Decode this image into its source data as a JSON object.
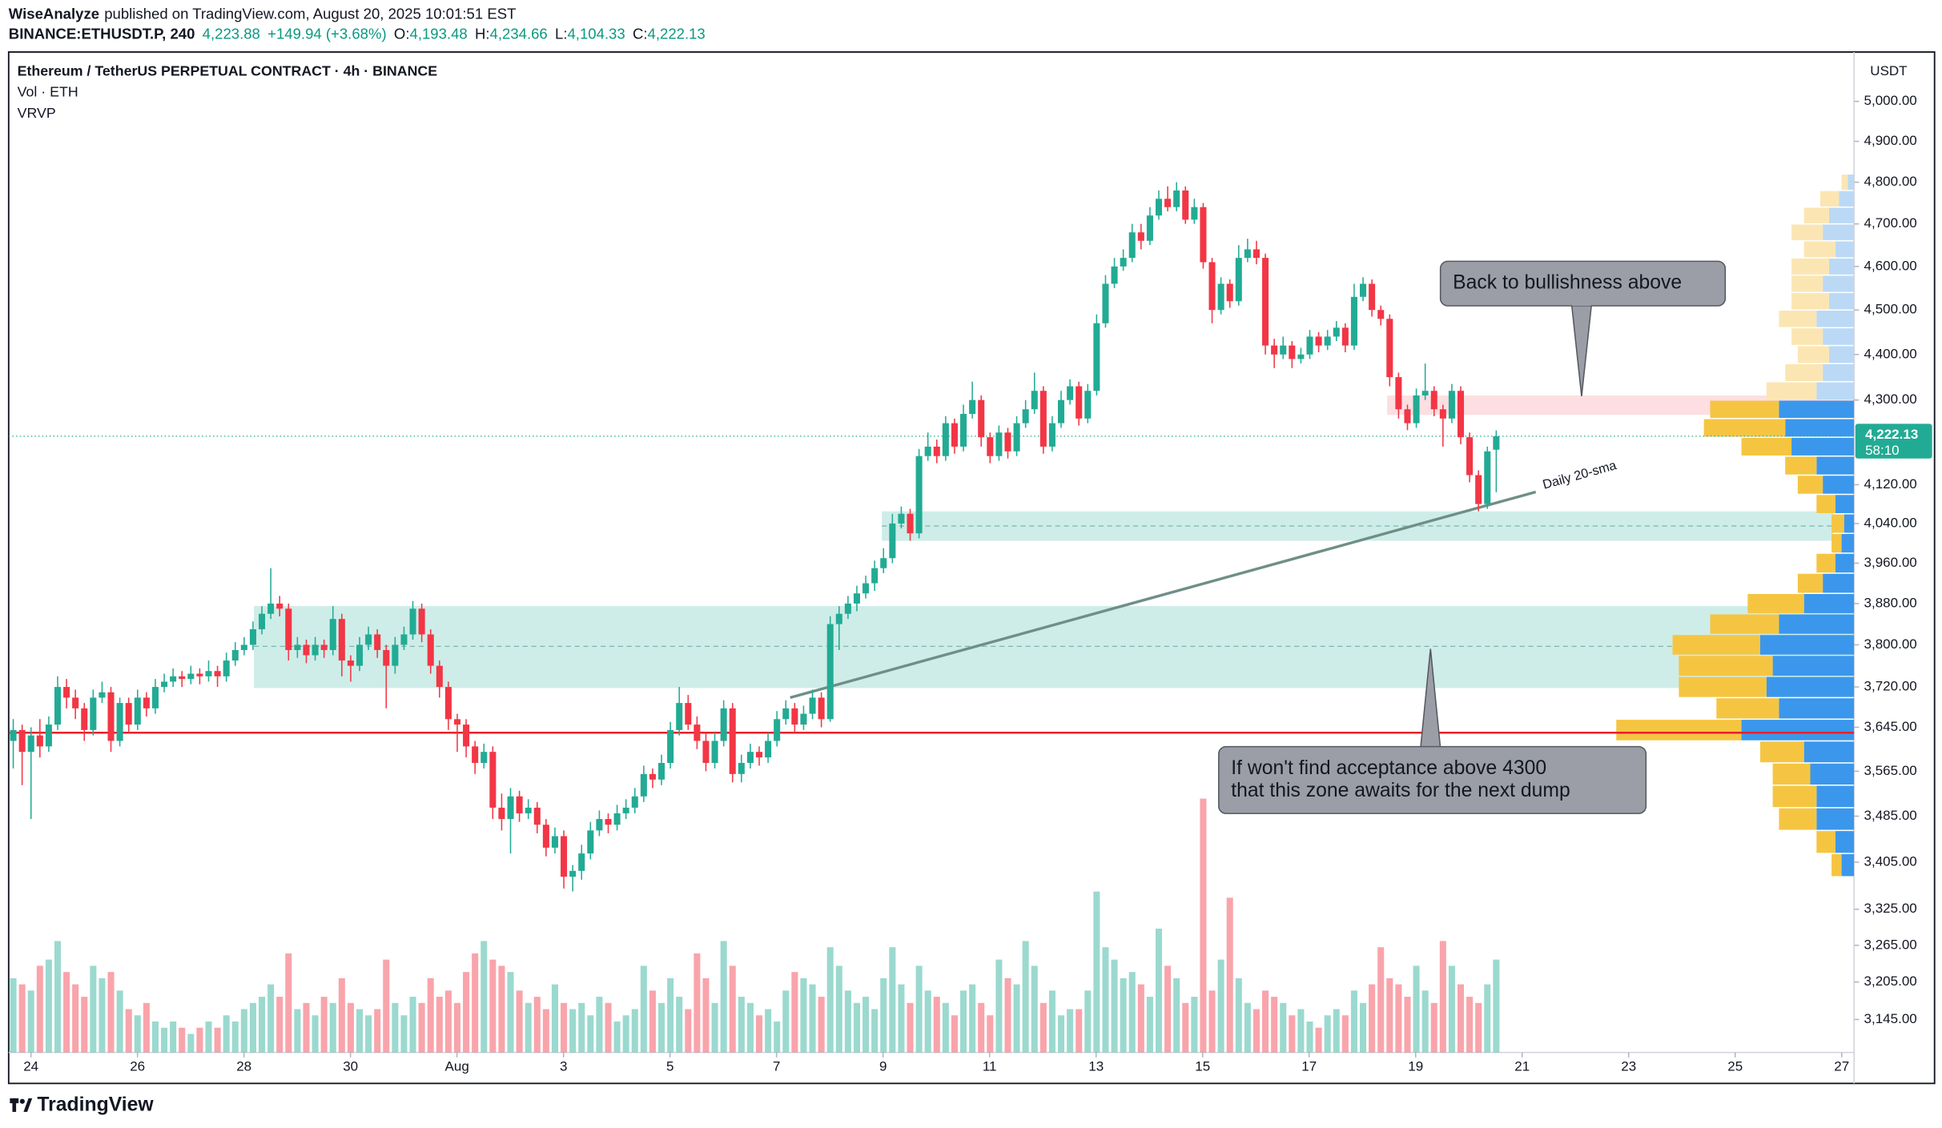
{
  "header": {
    "author": "WiseAnalyze",
    "published": "published on TradingView.com, August 20, 2025 10:01:51 EST",
    "symbol": "BINANCE:ETHUSDT.P, 240",
    "price": "4,223.88",
    "change": "+149.94 (+3.68%)",
    "ohlc": [
      {
        "label": "O:",
        "value": "4,193.48"
      },
      {
        "label": "H:",
        "value": "4,234.66"
      },
      {
        "label": "L:",
        "value": "4,104.33"
      },
      {
        "label": "C:",
        "value": "4,222.13"
      }
    ],
    "brand": "TradingView"
  },
  "chart_data": {
    "type": "candlestick",
    "title": "Ethereum / TetherUS PERPETUAL CONTRACT · 4h · BINANCE",
    "axis_unit": "USDT",
    "up_color": "#22ab94",
    "down_color": "#f23645",
    "log_scale": true,
    "grid": false,
    "ylim": [
      3093,
      5123
    ],
    "yticks": [
      {
        "value": 5000,
        "label": "5,000.00"
      },
      {
        "value": 4900,
        "label": "4,900.00"
      },
      {
        "value": 4800,
        "label": "4,800.00"
      },
      {
        "value": 4700,
        "label": "4,700.00"
      },
      {
        "value": 4600,
        "label": "4,600.00"
      },
      {
        "value": 4500,
        "label": "4,500.00"
      },
      {
        "value": 4400,
        "label": "4,400.00"
      },
      {
        "value": 4300,
        "label": "4,300.00"
      },
      {
        "value": 4120,
        "label": "4,120.00"
      },
      {
        "value": 4040,
        "label": "4,040.00"
      },
      {
        "value": 3960,
        "label": "3,960.00"
      },
      {
        "value": 3880,
        "label": "3,880.00"
      },
      {
        "value": 3800,
        "label": "3,800.00"
      },
      {
        "value": 3720,
        "label": "3,720.00"
      },
      {
        "value": 3645,
        "label": "3,645.00"
      },
      {
        "value": 3565,
        "label": "3,565.00"
      },
      {
        "value": 3485,
        "label": "3,485.00"
      },
      {
        "value": 3405,
        "label": "3,405.00"
      },
      {
        "value": 3325,
        "label": "3,325.00"
      },
      {
        "value": 3265,
        "label": "3,265.00"
      },
      {
        "value": 3205,
        "label": "3,205.00"
      },
      {
        "value": 3145,
        "label": "3,145.00"
      }
    ],
    "xticks": [
      "24",
      "26",
      "28",
      "30",
      "Aug",
      "3",
      "5",
      "7",
      "9",
      "11",
      "13",
      "15",
      "17",
      "19",
      "21",
      "23",
      "25",
      "27"
    ],
    "ohlc": [
      [
        3620,
        3660,
        3570,
        3640
      ],
      [
        3640,
        3650,
        3540,
        3600
      ],
      [
        3600,
        3645,
        3480,
        3630
      ],
      [
        3630,
        3660,
        3590,
        3610
      ],
      [
        3610,
        3665,
        3600,
        3650
      ],
      [
        3650,
        3740,
        3640,
        3720
      ],
      [
        3720,
        3735,
        3680,
        3700
      ],
      [
        3700,
        3715,
        3660,
        3680
      ],
      [
        3680,
        3690,
        3620,
        3640
      ],
      [
        3640,
        3715,
        3630,
        3700
      ],
      [
        3700,
        3730,
        3690,
        3710
      ],
      [
        3710,
        3720,
        3600,
        3620
      ],
      [
        3620,
        3700,
        3610,
        3690
      ],
      [
        3690,
        3700,
        3635,
        3650
      ],
      [
        3650,
        3715,
        3640,
        3700
      ],
      [
        3700,
        3710,
        3665,
        3680
      ],
      [
        3680,
        3735,
        3670,
        3720
      ],
      [
        3720,
        3745,
        3710,
        3730
      ],
      [
        3730,
        3755,
        3720,
        3740
      ],
      [
        3740,
        3750,
        3720,
        3735
      ],
      [
        3735,
        3760,
        3725,
        3745
      ],
      [
        3745,
        3755,
        3725,
        3740
      ],
      [
        3740,
        3770,
        3730,
        3750
      ],
      [
        3750,
        3760,
        3720,
        3740
      ],
      [
        3740,
        3785,
        3730,
        3770
      ],
      [
        3770,
        3805,
        3760,
        3790
      ],
      [
        3790,
        3815,
        3780,
        3800
      ],
      [
        3800,
        3845,
        3790,
        3830
      ],
      [
        3830,
        3875,
        3820,
        3860
      ],
      [
        3860,
        3950,
        3850,
        3880
      ],
      [
        3880,
        3895,
        3855,
        3870
      ],
      [
        3870,
        3880,
        3770,
        3790
      ],
      [
        3790,
        3815,
        3775,
        3800
      ],
      [
        3800,
        3810,
        3765,
        3780
      ],
      [
        3780,
        3815,
        3770,
        3800
      ],
      [
        3800,
        3810,
        3775,
        3790
      ],
      [
        3790,
        3875,
        3780,
        3850
      ],
      [
        3850,
        3860,
        3740,
        3770
      ],
      [
        3770,
        3780,
        3730,
        3760
      ],
      [
        3760,
        3815,
        3750,
        3800
      ],
      [
        3800,
        3835,
        3790,
        3820
      ],
      [
        3820,
        3830,
        3775,
        3790
      ],
      [
        3790,
        3800,
        3680,
        3760
      ],
      [
        3760,
        3815,
        3745,
        3800
      ],
      [
        3800,
        3835,
        3790,
        3820
      ],
      [
        3820,
        3885,
        3810,
        3870
      ],
      [
        3870,
        3880,
        3805,
        3820
      ],
      [
        3820,
        3830,
        3745,
        3760
      ],
      [
        3760,
        3770,
        3700,
        3720
      ],
      [
        3720,
        3730,
        3640,
        3660
      ],
      [
        3660,
        3670,
        3600,
        3650
      ],
      [
        3650,
        3660,
        3590,
        3610
      ],
      [
        3610,
        3620,
        3560,
        3580
      ],
      [
        3580,
        3615,
        3570,
        3600
      ],
      [
        3600,
        3610,
        3480,
        3500
      ],
      [
        3500,
        3525,
        3460,
        3480
      ],
      [
        3480,
        3535,
        3420,
        3520
      ],
      [
        3520,
        3530,
        3475,
        3490
      ],
      [
        3490,
        3515,
        3480,
        3500
      ],
      [
        3500,
        3510,
        3455,
        3470
      ],
      [
        3470,
        3480,
        3415,
        3430
      ],
      [
        3430,
        3465,
        3420,
        3450
      ],
      [
        3450,
        3460,
        3360,
        3380
      ],
      [
        3380,
        3400,
        3355,
        3390
      ],
      [
        3390,
        3435,
        3375,
        3420
      ],
      [
        3420,
        3475,
        3410,
        3460
      ],
      [
        3460,
        3495,
        3450,
        3480
      ],
      [
        3480,
        3490,
        3455,
        3470
      ],
      [
        3470,
        3505,
        3460,
        3490
      ],
      [
        3490,
        3515,
        3480,
        3500
      ],
      [
        3500,
        3535,
        3490,
        3520
      ],
      [
        3520,
        3575,
        3510,
        3560
      ],
      [
        3560,
        3570,
        3535,
        3550
      ],
      [
        3550,
        3595,
        3540,
        3580
      ],
      [
        3580,
        3655,
        3570,
        3640
      ],
      [
        3640,
        3720,
        3630,
        3690
      ],
      [
        3690,
        3705,
        3640,
        3650
      ],
      [
        3650,
        3665,
        3605,
        3620
      ],
      [
        3620,
        3635,
        3565,
        3580
      ],
      [
        3580,
        3635,
        3570,
        3620
      ],
      [
        3620,
        3695,
        3610,
        3680
      ],
      [
        3680,
        3690,
        3545,
        3560
      ],
      [
        3560,
        3595,
        3545,
        3580
      ],
      [
        3580,
        3615,
        3570,
        3600
      ],
      [
        3600,
        3610,
        3575,
        3590
      ],
      [
        3590,
        3635,
        3580,
        3620
      ],
      [
        3620,
        3675,
        3610,
        3660
      ],
      [
        3660,
        3695,
        3650,
        3680
      ],
      [
        3680,
        3690,
        3635,
        3650
      ],
      [
        3650,
        3685,
        3640,
        3670
      ],
      [
        3670,
        3715,
        3660,
        3700
      ],
      [
        3700,
        3710,
        3645,
        3660
      ],
      [
        3660,
        3855,
        3655,
        3840
      ],
      [
        3840,
        3875,
        3790,
        3860
      ],
      [
        3860,
        3895,
        3850,
        3880
      ],
      [
        3880,
        3915,
        3865,
        3900
      ],
      [
        3900,
        3935,
        3890,
        3920
      ],
      [
        3920,
        3965,
        3905,
        3950
      ],
      [
        3950,
        3990,
        3940,
        3970
      ],
      [
        3970,
        4060,
        3960,
        4040
      ],
      [
        4040,
        4075,
        4030,
        4060
      ],
      [
        4060,
        4070,
        4005,
        4020
      ],
      [
        4020,
        4195,
        4010,
        4180
      ],
      [
        4180,
        4230,
        4170,
        4200
      ],
      [
        4200,
        4215,
        4165,
        4180
      ],
      [
        4180,
        4265,
        4170,
        4250
      ],
      [
        4250,
        4260,
        4185,
        4200
      ],
      [
        4200,
        4290,
        4190,
        4270
      ],
      [
        4270,
        4340,
        4260,
        4300
      ],
      [
        4300,
        4310,
        4200,
        4220
      ],
      [
        4220,
        4230,
        4165,
        4180
      ],
      [
        4180,
        4245,
        4170,
        4230
      ],
      [
        4230,
        4240,
        4175,
        4190
      ],
      [
        4190,
        4265,
        4180,
        4250
      ],
      [
        4250,
        4300,
        4240,
        4280
      ],
      [
        4280,
        4360,
        4270,
        4320
      ],
      [
        4320,
        4330,
        4185,
        4200
      ],
      [
        4200,
        4265,
        4190,
        4250
      ],
      [
        4250,
        4320,
        4240,
        4300
      ],
      [
        4300,
        4345,
        4290,
        4330
      ],
      [
        4330,
        4340,
        4245,
        4260
      ],
      [
        4260,
        4335,
        4250,
        4320
      ],
      [
        4320,
        4490,
        4310,
        4470
      ],
      [
        4470,
        4580,
        4460,
        4560
      ],
      [
        4560,
        4620,
        4550,
        4600
      ],
      [
        4600,
        4640,
        4590,
        4620
      ],
      [
        4620,
        4700,
        4610,
        4680
      ],
      [
        4680,
        4700,
        4640,
        4660
      ],
      [
        4660,
        4740,
        4650,
        4720
      ],
      [
        4720,
        4780,
        4710,
        4760
      ],
      [
        4760,
        4790,
        4730,
        4740
      ],
      [
        4740,
        4800,
        4730,
        4780
      ],
      [
        4780,
        4790,
        4700,
        4710
      ],
      [
        4710,
        4760,
        4700,
        4740
      ],
      [
        4740,
        4750,
        4595,
        4610
      ],
      [
        4610,
        4620,
        4470,
        4500
      ],
      [
        4500,
        4575,
        4490,
        4560
      ],
      [
        4560,
        4570,
        4505,
        4520
      ],
      [
        4520,
        4650,
        4510,
        4620
      ],
      [
        4620,
        4665,
        4610,
        4640
      ],
      [
        4640,
        4660,
        4605,
        4620
      ],
      [
        4620,
        4630,
        4400,
        4420
      ],
      [
        4420,
        4435,
        4370,
        4400
      ],
      [
        4400,
        4440,
        4390,
        4420
      ],
      [
        4420,
        4430,
        4370,
        4390
      ],
      [
        4390,
        4415,
        4380,
        4400
      ],
      [
        4400,
        4455,
        4390,
        4440
      ],
      [
        4440,
        4450,
        4405,
        4420
      ],
      [
        4420,
        4455,
        4410,
        4440
      ],
      [
        4440,
        4475,
        4430,
        4460
      ],
      [
        4460,
        4470,
        4405,
        4420
      ],
      [
        4420,
        4560,
        4410,
        4530
      ],
      [
        4530,
        4575,
        4520,
        4560
      ],
      [
        4560,
        4570,
        4485,
        4500
      ],
      [
        4500,
        4510,
        4465,
        4480
      ],
      [
        4480,
        4490,
        4330,
        4350
      ],
      [
        4350,
        4360,
        4260,
        4280
      ],
      [
        4280,
        4290,
        4235,
        4250
      ],
      [
        4250,
        4325,
        4240,
        4310
      ],
      [
        4310,
        4380,
        4300,
        4320
      ],
      [
        4320,
        4330,
        4265,
        4280
      ],
      [
        4280,
        4290,
        4200,
        4260
      ],
      [
        4260,
        4335,
        4250,
        4320
      ],
      [
        4320,
        4330,
        4205,
        4220
      ],
      [
        4220,
        4230,
        4125,
        4140
      ],
      [
        4140,
        4150,
        4065,
        4080
      ],
      [
        4080,
        4200,
        4070,
        4190
      ],
      [
        4193.48,
        4234.66,
        4104.33,
        4222.13
      ]
    ],
    "volume": {
      "label": "Vol · ETH",
      "values": [
        60,
        55,
        50,
        70,
        75,
        90,
        65,
        55,
        45,
        70,
        60,
        65,
        50,
        35,
        30,
        40,
        25,
        20,
        25,
        20,
        15,
        20,
        25,
        20,
        30,
        25,
        35,
        40,
        45,
        55,
        45,
        80,
        35,
        40,
        30,
        45,
        40,
        60,
        40,
        35,
        30,
        35,
        75,
        40,
        30,
        45,
        40,
        60,
        45,
        50,
        40,
        65,
        80,
        90,
        75,
        70,
        65,
        50,
        40,
        45,
        35,
        55,
        40,
        35,
        40,
        30,
        45,
        40,
        25,
        30,
        35,
        70,
        50,
        40,
        60,
        45,
        35,
        80,
        60,
        40,
        90,
        70,
        45,
        40,
        30,
        35,
        25,
        50,
        65,
        60,
        55,
        45,
        85,
        70,
        50,
        40,
        45,
        35,
        60,
        85,
        55,
        40,
        70,
        50,
        45,
        40,
        30,
        50,
        55,
        40,
        30,
        75,
        60,
        55,
        90,
        70,
        40,
        50,
        30,
        35,
        35,
        50,
        130,
        85,
        75,
        60,
        65,
        55,
        45,
        100,
        70,
        60,
        40,
        45,
        205,
        50,
        75,
        125,
        60,
        40,
        35,
        50,
        45,
        40,
        30,
        35,
        25,
        20,
        30,
        35,
        30,
        50,
        40,
        55,
        85,
        60,
        55,
        45,
        70,
        50,
        40,
        90,
        70,
        55,
        45,
        40,
        55,
        75
      ]
    },
    "last_price": {
      "value_label": "4,222.13",
      "countdown": "58:10"
    },
    "vrvp": {
      "label": "VRVP",
      "levels": [
        3380,
        3420,
        3460,
        3500,
        3540,
        3580,
        3620,
        3660,
        3700,
        3740,
        3780,
        3820,
        3860,
        3900,
        3940,
        3980,
        4020,
        4060,
        4100,
        4140,
        4180,
        4220,
        4260,
        4300,
        4340,
        4380,
        4420,
        4460,
        4500,
        4540,
        4580,
        4620,
        4660,
        4700,
        4740,
        4780,
        4820
      ],
      "up": [
        10,
        15,
        30,
        30,
        35,
        40,
        90,
        60,
        70,
        65,
        75,
        60,
        40,
        25,
        15,
        10,
        8,
        15,
        25,
        30,
        50,
        55,
        60,
        30,
        25,
        20,
        25,
        30,
        20,
        25,
        20,
        15,
        25,
        20,
        12,
        5
      ],
      "down": [
        8,
        15,
        30,
        35,
        30,
        35,
        100,
        50,
        70,
        75,
        70,
        55,
        45,
        20,
        15,
        8,
        10,
        15,
        20,
        25,
        40,
        65,
        55,
        40,
        30,
        25,
        25,
        30,
        30,
        25,
        30,
        25,
        25,
        20,
        15,
        5
      ],
      "value_area": [
        3380,
        4300
      ],
      "up_color": "#3b97ec",
      "down_color": "#f5c542",
      "up_color_outside": "#bbd9f5",
      "down_color_outside": "#fbe6b3"
    },
    "poc_line": {
      "value": 3635,
      "color": "#e8202a"
    },
    "zones": [
      {
        "low": 3718,
        "high": 3875,
        "mid": 3797,
        "color": "rgba(34,171,148,0.22)"
      },
      {
        "low": 4005,
        "high": 4065,
        "mid": 4035,
        "color": "rgba(34,171,148,0.22)"
      },
      {
        "low": 4268,
        "high": 4310,
        "color": "rgba(242,54,69,0.16)"
      }
    ],
    "trendline": {
      "label": "Daily 20-sma",
      "start": 3700,
      "end": 4105,
      "color": "#6e8f87"
    },
    "callouts": [
      {
        "lines": [
          "Back to bullishness above"
        ]
      },
      {
        "lines": [
          "If won't find acceptance above 4300",
          "that this zone awaits for the next dump"
        ]
      }
    ]
  }
}
